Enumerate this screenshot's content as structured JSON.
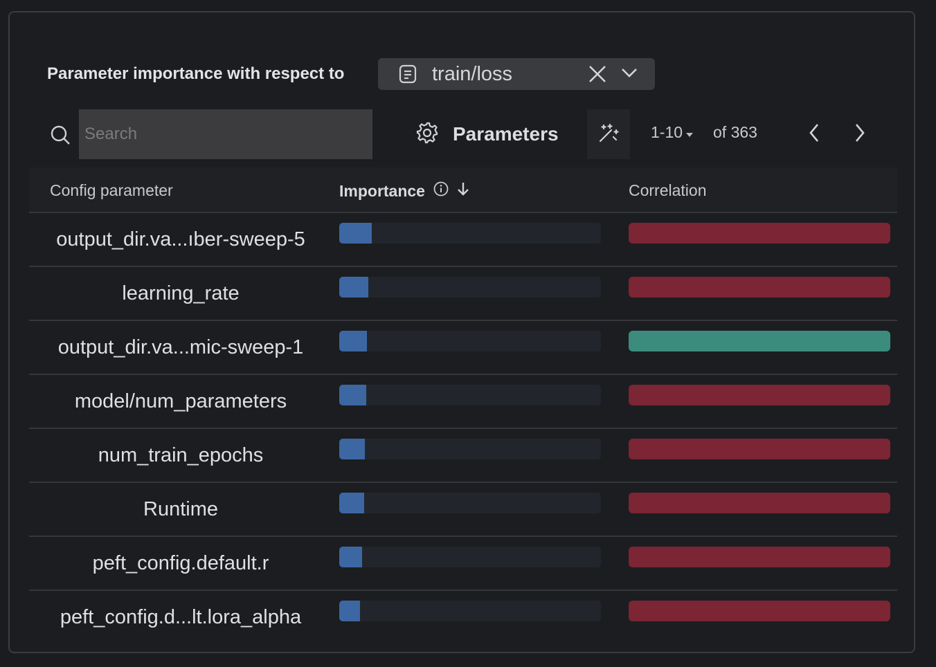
{
  "panel": {
    "title": "Parameter importance with respect to",
    "metric": "train/loss"
  },
  "toolbar": {
    "search_placeholder": "Search",
    "parameters_label": "Parameters",
    "page_range": "1-10",
    "total_label": "of 363"
  },
  "table": {
    "headers": {
      "param": "Config parameter",
      "importance": "Importance",
      "correlation": "Correlation"
    },
    "rows": [
      {
        "name": "output_dir.va...ıber-sweep-5",
        "importance": 0.125,
        "correlation": "negative"
      },
      {
        "name": "learning_rate",
        "importance": 0.11,
        "correlation": "negative"
      },
      {
        "name": "output_dir.va...mic-sweep-1",
        "importance": 0.105,
        "correlation": "positive"
      },
      {
        "name": "model/num_parameters",
        "importance": 0.102,
        "correlation": "negative"
      },
      {
        "name": "num_train_epochs",
        "importance": 0.097,
        "correlation": "negative"
      },
      {
        "name": "Runtime",
        "importance": 0.094,
        "correlation": "negative"
      },
      {
        "name": "peft_config.default.r",
        "importance": 0.087,
        "correlation": "negative"
      },
      {
        "name": "peft_config.d...lt.lora_alpha",
        "importance": 0.08,
        "correlation": "negative"
      }
    ]
  },
  "colors": {
    "importance_fill": "#3c67a3",
    "negative": "#7b2535",
    "positive": "#3b8c7c"
  },
  "icons": {
    "metric": "document-icon",
    "clear": "close-icon",
    "dropdown": "chevron-down-icon",
    "search": "search-icon",
    "settings": "gear-icon",
    "auto": "magic-wand-icon",
    "info": "info-icon",
    "sort": "arrow-down-icon",
    "prev": "chevron-left-icon",
    "next": "chevron-right-icon"
  }
}
